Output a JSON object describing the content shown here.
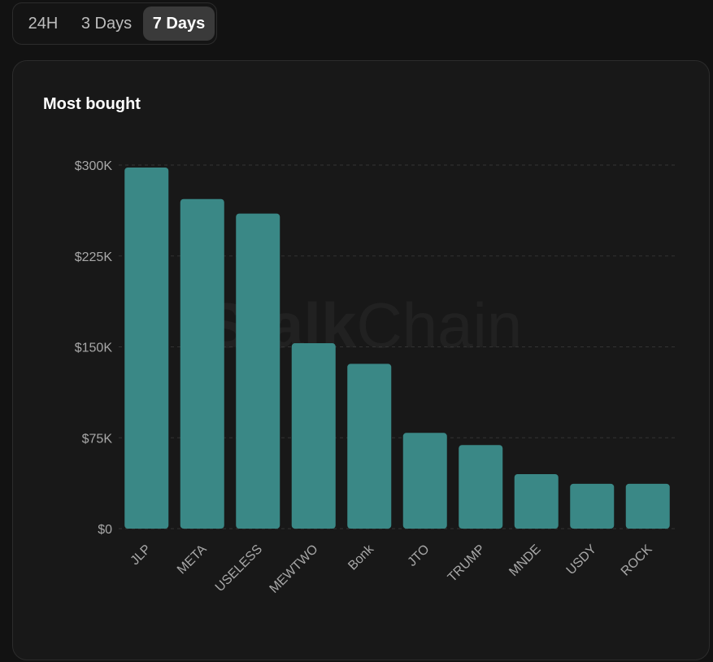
{
  "tabs": {
    "items": [
      {
        "label": "24H",
        "active": false
      },
      {
        "label": "3 Days",
        "active": false
      },
      {
        "label": "7 Days",
        "active": true
      }
    ]
  },
  "card": {
    "title": "Most bought",
    "watermark_bold": "Stalk",
    "watermark_light": "Chain"
  },
  "colors": {
    "bar": "#3a8886",
    "grid": "#333333",
    "tick_label": "#a8a8a8"
  },
  "chart_data": {
    "type": "bar",
    "title": "Most bought",
    "categories": [
      "JLP",
      "META",
      "USELESS",
      "MEWTWO",
      "Bonk",
      "JTO",
      "TRUMP",
      "MNDE",
      "USDY",
      "ROCK"
    ],
    "values": [
      298000,
      272000,
      260000,
      153000,
      136000,
      79000,
      69000,
      45000,
      37000,
      37000
    ],
    "ylim": [
      0,
      300000
    ],
    "yticks": [
      0,
      75000,
      150000,
      225000,
      300000
    ],
    "ytick_labels": [
      "$0",
      "$75K",
      "$150K",
      "$225K",
      "$300K"
    ],
    "xlabel": "",
    "ylabel": "",
    "grid": true
  }
}
